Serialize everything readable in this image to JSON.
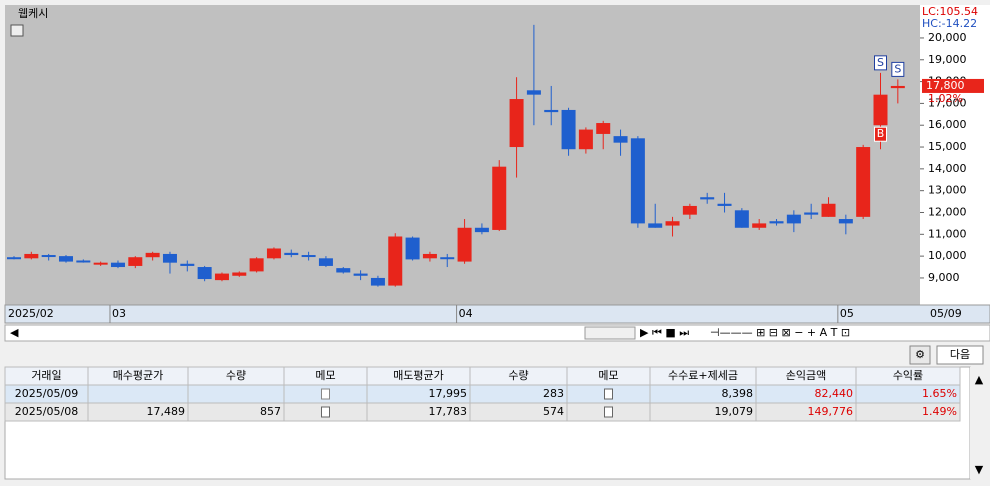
{
  "title": "웹케시",
  "chart_data": {
    "type": "candlestick",
    "categories": [
      "2025/02",
      null,
      null,
      null,
      null,
      null,
      "03",
      null,
      null,
      null,
      null,
      null,
      null,
      null,
      null,
      null,
      null,
      null,
      null,
      null,
      null,
      null,
      null,
      null,
      null,
      null,
      "04",
      null,
      null,
      null,
      null,
      null,
      null,
      null,
      null,
      null,
      null,
      null,
      null,
      null,
      null,
      null,
      null,
      null,
      null,
      null,
      null,
      null,
      "05",
      null,
      null,
      "05/09"
    ],
    "open": [
      9950,
      9900,
      10050,
      10000,
      9800,
      9650,
      9700,
      9550,
      9950,
      10100,
      9650,
      9500,
      8900,
      9100,
      9300,
      9900,
      10150,
      10050,
      9900,
      9450,
      9200,
      9000,
      8650,
      10850,
      9900,
      9950,
      9750,
      11300,
      11200,
      15000,
      17600,
      16700,
      16700,
      14900,
      15600,
      15500,
      15400,
      11500,
      11400,
      11900,
      12700,
      12400,
      12100,
      11300,
      11600,
      11900,
      12000,
      11800,
      11700,
      11800,
      16000,
      17700
    ],
    "high": [
      10000,
      10200,
      10100,
      10050,
      9850,
      9750,
      9800,
      10000,
      10200,
      10200,
      9800,
      9550,
      9250,
      9300,
      9950,
      10400,
      10300,
      10200,
      10000,
      9500,
      9350,
      9100,
      11050,
      10900,
      10200,
      10100,
      11700,
      11500,
      14400,
      18200,
      20600,
      17800,
      16800,
      15900,
      16200,
      15800,
      15500,
      12400,
      11800,
      12400,
      12900,
      12900,
      12200,
      11700,
      11700,
      12100,
      12400,
      12700,
      11900,
      15100,
      18400,
      18100
    ],
    "low": [
      9850,
      9850,
      9800,
      9700,
      9700,
      9550,
      9450,
      9450,
      9800,
      9200,
      9300,
      8850,
      8850,
      9050,
      9250,
      9850,
      9950,
      9800,
      9500,
      9200,
      8900,
      8600,
      8600,
      9800,
      9750,
      9500,
      9650,
      11000,
      11150,
      13600,
      16000,
      16000,
      14600,
      14700,
      14900,
      14600,
      11300,
      11300,
      10900,
      11700,
      12400,
      12000,
      11300,
      11200,
      11400,
      11100,
      11700,
      11800,
      11000,
      11700,
      14900,
      17000
    ],
    "close": [
      9900,
      10100,
      10000,
      9750,
      9750,
      9700,
      9500,
      9950,
      10150,
      9700,
      9550,
      8950,
      9200,
      9250,
      9900,
      10350,
      10050,
      10000,
      9550,
      9250,
      9100,
      8650,
      10900,
      9850,
      10100,
      9900,
      11300,
      11100,
      14100,
      17200,
      17400,
      16600,
      14900,
      15800,
      16100,
      15200,
      11500,
      11300,
      11600,
      12300,
      12600,
      12300,
      11300,
      11500,
      11500,
      11500,
      11900,
      12400,
      11500,
      15000,
      17400,
      17800
    ],
    "up_color": "#e8251b",
    "down_color": "#1f5fce",
    "ylim": [
      7760,
      21510
    ],
    "yticks": [
      {
        "value": 9000,
        "label": "9,000"
      },
      {
        "value": 10000,
        "label": "10,000"
      },
      {
        "value": 11000,
        "label": "11,000"
      },
      {
        "value": 12000,
        "label": "12,000"
      },
      {
        "value": 13000,
        "label": "13,000"
      },
      {
        "value": 14000,
        "label": "14,000"
      },
      {
        "value": 15000,
        "label": "15,000"
      },
      {
        "value": 16000,
        "label": "16,000"
      },
      {
        "value": 17000,
        "label": "17,000"
      },
      {
        "value": 18000,
        "label": "18,000"
      },
      {
        "value": 19000,
        "label": "19,000"
      },
      {
        "value": 20000,
        "label": "20,000"
      }
    ],
    "last_price": {
      "value": 17800,
      "label": "17,800"
    },
    "change": "1.02%",
    "lc": "LC:105.54",
    "hc": "HC:-14.22",
    "markers": [
      {
        "index": 50,
        "label": "S"
      },
      {
        "index": 51,
        "label": "S"
      },
      {
        "index": 50,
        "label": "B"
      }
    ]
  },
  "toolbar": {
    "next": "다음"
  },
  "table": {
    "headers": [
      "거래일",
      "매수평균가",
      "수량",
      "메모",
      "매도평균가",
      "수량",
      "메모",
      "수수료+제세금",
      "손익금액",
      "수익률"
    ],
    "rows": [
      [
        "2025/05/09",
        "",
        "",
        "",
        "17,995",
        "283",
        "",
        "8,398",
        "82,440",
        "1.65%"
      ],
      [
        "2025/05/08",
        "17,489",
        "857",
        "",
        "17,783",
        "574",
        "",
        "19,079",
        "149,776",
        "1.49%"
      ]
    ]
  }
}
